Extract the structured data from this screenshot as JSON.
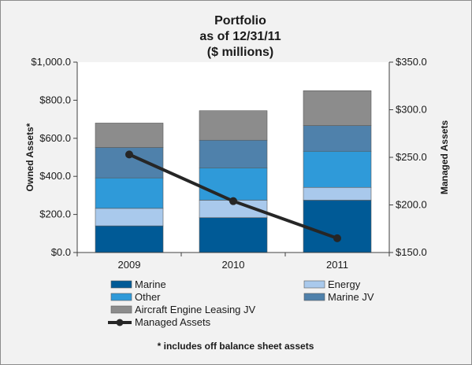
{
  "chart_data": {
    "type": "bar",
    "subtype": "stacked-bar-with-line",
    "title_lines": [
      "Portfolio",
      "as of 12/31/11",
      "($ millions)"
    ],
    "categories": [
      "2009",
      "2010",
      "2011"
    ],
    "left_axis": {
      "label": "Owned Assets*",
      "range": [
        0,
        1000
      ],
      "ticks": [
        0,
        200,
        400,
        600,
        800,
        1000
      ],
      "tick_labels": [
        "$0.0",
        "$200.0",
        "$400.0",
        "$600.0",
        "$800.0",
        "$1,000.0"
      ]
    },
    "right_axis": {
      "label": "Managed Assets",
      "range": [
        150,
        350
      ],
      "ticks": [
        150,
        200,
        250,
        300,
        350
      ],
      "tick_labels": [
        "$150.0",
        "$200.0",
        "$250.0",
        "$300.0",
        "$350.0"
      ]
    },
    "series": [
      {
        "name": "Marine",
        "kind": "bar",
        "axis": "left",
        "color": "#005a96",
        "values": [
          140,
          183,
          275
        ]
      },
      {
        "name": "Energy",
        "kind": "bar",
        "axis": "left",
        "color": "#a9c9ec",
        "values": [
          92,
          92,
          67
        ]
      },
      {
        "name": "Other",
        "kind": "bar",
        "axis": "left",
        "color": "#2f9ad9",
        "values": [
          160,
          170,
          190
        ]
      },
      {
        "name": "Marine JV",
        "kind": "bar",
        "axis": "left",
        "color": "#4f81ab",
        "values": [
          160,
          145,
          135
        ]
      },
      {
        "name": "Aircraft Engine Leasing JV",
        "kind": "bar",
        "axis": "left",
        "color": "#8c8c8c",
        "values": [
          128,
          155,
          183
        ]
      },
      {
        "name": "Managed Assets",
        "kind": "line",
        "axis": "right",
        "color": "#262626",
        "values": [
          253,
          204,
          165
        ]
      }
    ],
    "grid": false,
    "legend_position": "bottom",
    "footnote": "* includes off balance sheet assets"
  }
}
